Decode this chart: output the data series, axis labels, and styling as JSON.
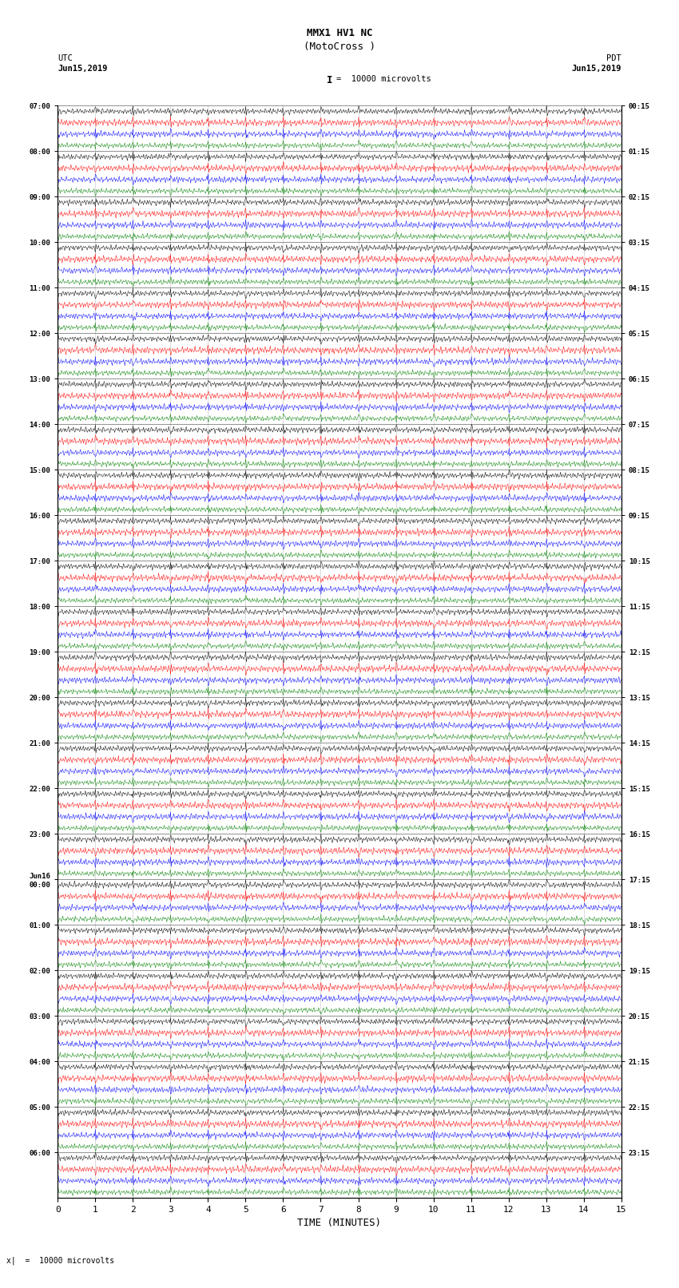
{
  "title": "MMX1 HV1 NC",
  "subtitle": "(MotoCross )",
  "left_label": "UTC",
  "left_date": "Jun15,2019",
  "right_label": "PDT",
  "right_date": "Jun15,2019",
  "xlabel": "TIME (MINUTES)",
  "scale_label": "I  =  10000 microvolts",
  "bottom_note": "x|  =  10000 microvolts",
  "utc_times": [
    "07:00",
    "08:00",
    "09:00",
    "10:00",
    "11:00",
    "12:00",
    "13:00",
    "14:00",
    "15:00",
    "16:00",
    "17:00",
    "18:00",
    "19:00",
    "20:00",
    "21:00",
    "22:00",
    "23:00",
    "Jun16\n00:00",
    "01:00",
    "02:00",
    "03:00",
    "04:00",
    "05:00",
    "06:00"
  ],
  "pdt_times": [
    "00:15",
    "01:15",
    "02:15",
    "03:15",
    "04:15",
    "05:15",
    "06:15",
    "07:15",
    "08:15",
    "09:15",
    "10:15",
    "11:15",
    "12:15",
    "13:15",
    "14:15",
    "15:15",
    "16:15",
    "17:15",
    "18:15",
    "19:15",
    "20:15",
    "21:15",
    "22:15",
    "23:15"
  ],
  "trace_colors": [
    "black",
    "red",
    "blue",
    "green"
  ],
  "n_hours": 24,
  "traces_per_hour": 4,
  "x_min": 0,
  "x_max": 15,
  "background_color": "white",
  "figsize": [
    8.5,
    16.13
  ],
  "dpi": 100
}
